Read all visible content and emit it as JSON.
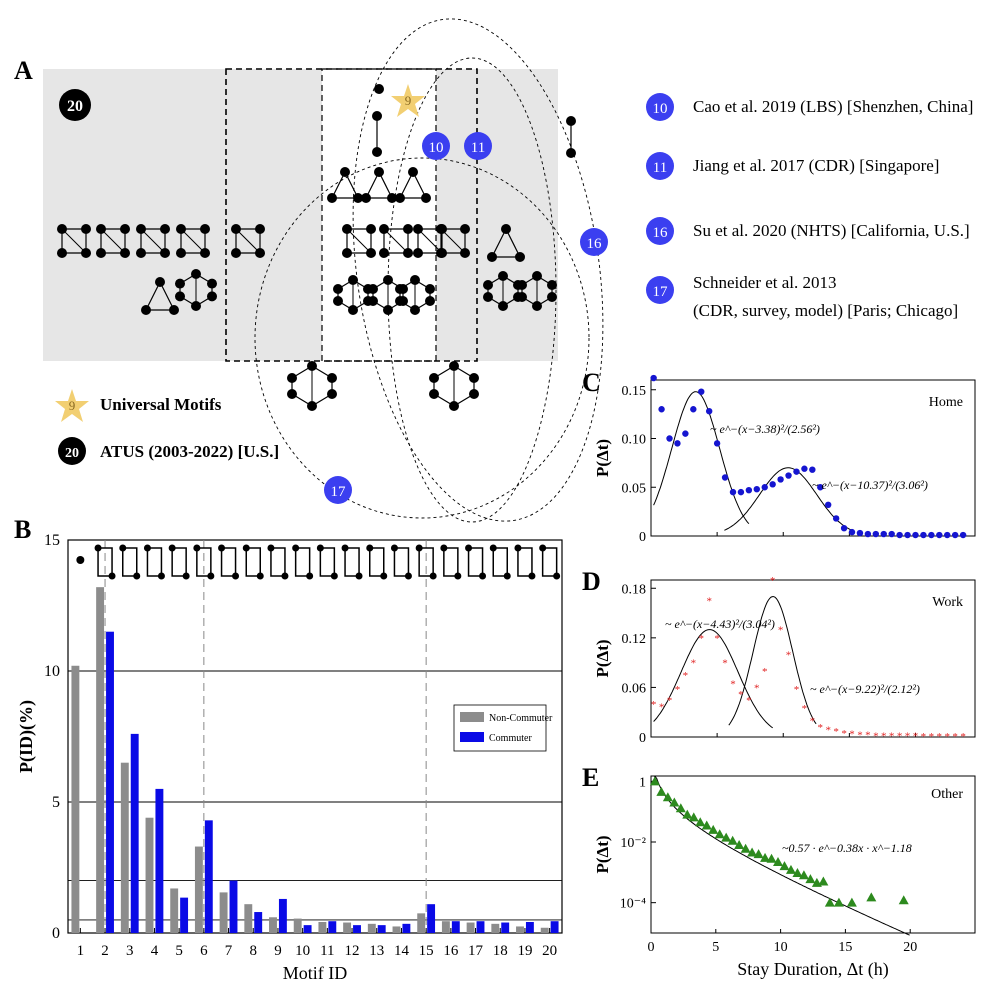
{
  "panel_a": {
    "label": "A",
    "badges": {
      "atus": "20",
      "universal": "9",
      "cao": "10",
      "jiang": "11",
      "su": "16",
      "schneider": "17"
    },
    "legend": {
      "universal_badge": "9",
      "universal_label": "Universal Motifs",
      "atus_badge": "20",
      "atus_label": "ATUS (2003-2022) [U.S.]"
    },
    "references": [
      {
        "badge": "10",
        "text": "Cao et al. 2019 (LBS) [Shenzhen, China]"
      },
      {
        "badge": "11",
        "text": "Jiang et al. 2017 (CDR) [Singapore]"
      },
      {
        "badge": "16",
        "text": "Su et al. 2020 (NHTS) [California, U.S.]"
      },
      {
        "badge": "17",
        "text_line1": "Schneider et al. 2013",
        "text_line2": "(CDR, survey, model) [Paris; Chicago]"
      }
    ]
  },
  "colors": {
    "atus": "#000000",
    "reference": "#3b3ff0",
    "universal": "#f2cf72",
    "non_commuter": "#8c8c8c",
    "commuter": "#0a0ae6",
    "home": "#1515d0",
    "work": "#e02020",
    "other": "#2d8a1e"
  },
  "chart_data": [
    {
      "panel": "B",
      "type": "bar",
      "title": "",
      "xlabel": "Motif ID",
      "ylabel": "P(ID)(%)",
      "ylim": [
        0,
        15
      ],
      "yticks": [
        "0",
        "5",
        "10",
        "15"
      ],
      "categories": [
        "1",
        "2",
        "3",
        "4",
        "5",
        "6",
        "7",
        "8",
        "9",
        "10",
        "11",
        "12",
        "13",
        "14",
        "15",
        "16",
        "17",
        "18",
        "19",
        "20"
      ],
      "series": [
        {
          "name": "Non-Commuter",
          "values": [
            10.2,
            13.2,
            6.5,
            4.4,
            1.7,
            3.3,
            1.55,
            1.1,
            0.6,
            0.55,
            0.42,
            0.4,
            0.35,
            0.25,
            0.75,
            0.45,
            0.4,
            0.35,
            0.25,
            0.2
          ]
        },
        {
          "name": "Commuter",
          "values": [
            0.0,
            11.5,
            7.6,
            5.5,
            1.35,
            4.3,
            2.0,
            0.8,
            1.3,
            0.3,
            0.45,
            0.3,
            0.3,
            0.35,
            1.1,
            0.45,
            0.45,
            0.4,
            0.42,
            0.45
          ]
        }
      ],
      "hlines": [
        0.5,
        2.0,
        5.0,
        10.0
      ]
    },
    {
      "panel": "C",
      "type": "scatter",
      "annotation": "Home",
      "ylabel": "P(Δt)",
      "ylim": [
        0,
        0.16
      ],
      "yticks": [
        "0",
        "0.05",
        "0.10",
        "0.15"
      ],
      "fits": [
        {
          "label": "~ e^−(x−3.38)²/(2.56²)",
          "mu": 3.38,
          "sigma": 2.56,
          "amp": 0.148
        },
        {
          "label": "~ e^−(x−10.37)²/(3.06²)",
          "mu": 10.37,
          "sigma": 3.06,
          "amp": 0.07
        }
      ],
      "x": [
        0.2,
        0.8,
        1.4,
        2.0,
        2.6,
        3.2,
        3.8,
        4.4,
        5.0,
        5.6,
        6.2,
        6.8,
        7.4,
        8.0,
        8.6,
        9.2,
        9.8,
        10.4,
        11.0,
        11.6,
        12.2,
        12.8,
        13.4,
        14.0,
        14.6,
        15.2,
        15.8,
        16.4,
        17.0,
        17.6,
        18.2,
        18.8,
        19.4,
        20.0,
        20.6,
        21.2,
        21.8,
        22.4,
        23.0,
        23.6
      ],
      "y": [
        0.162,
        0.13,
        0.1,
        0.095,
        0.105,
        0.13,
        0.148,
        0.128,
        0.095,
        0.06,
        0.045,
        0.045,
        0.047,
        0.048,
        0.05,
        0.053,
        0.058,
        0.062,
        0.066,
        0.069,
        0.068,
        0.05,
        0.032,
        0.018,
        0.008,
        0.004,
        0.003,
        0.002,
        0.002,
        0.002,
        0.002,
        0.001,
        0.001,
        0.001,
        0.001,
        0.001,
        0.001,
        0.001,
        0.001,
        0.001
      ]
    },
    {
      "panel": "D",
      "type": "scatter",
      "annotation": "Work",
      "ylabel": "P(Δt)",
      "ylim": [
        0,
        0.19
      ],
      "yticks": [
        "0",
        "0.06",
        "0.12",
        "0.18"
      ],
      "fits": [
        {
          "label": "~ e^−(x−4.43)²/(3.04²)",
          "mu": 4.43,
          "sigma": 3.04,
          "amp": 0.13
        },
        {
          "label": "~ e^−(x−9.22)²/(2.12²)",
          "mu": 9.22,
          "sigma": 2.12,
          "amp": 0.17
        }
      ],
      "x": [
        0.2,
        0.8,
        1.4,
        2.0,
        2.6,
        3.2,
        3.8,
        4.4,
        5.0,
        5.6,
        6.2,
        6.8,
        7.4,
        8.0,
        8.6,
        9.2,
        9.8,
        10.4,
        11.0,
        11.6,
        12.2,
        12.8,
        13.4,
        14.0,
        14.6,
        15.2,
        15.8,
        16.4,
        17.0,
        17.6,
        18.2,
        18.8,
        19.4,
        20.0,
        20.6,
        21.2,
        21.8,
        22.4,
        23.0,
        23.6
      ],
      "y": [
        0.04,
        0.037,
        0.045,
        0.058,
        0.075,
        0.09,
        0.12,
        0.165,
        0.12,
        0.09,
        0.065,
        0.052,
        0.045,
        0.06,
        0.08,
        0.19,
        0.13,
        0.1,
        0.058,
        0.035,
        0.02,
        0.012,
        0.009,
        0.007,
        0.005,
        0.004,
        0.003,
        0.003,
        0.002,
        0.002,
        0.002,
        0.002,
        0.002,
        0.002,
        0.001,
        0.001,
        0.001,
        0.001,
        0.001,
        0.001
      ]
    },
    {
      "panel": "E",
      "type": "scatter",
      "annotation": "Other",
      "xlabel": "Stay Duration, Δt (h)",
      "ylabel": "P(Δt)",
      "yscale": "log",
      "ylim": [
        1e-05,
        1.5
      ],
      "xlim": [
        0,
        25
      ],
      "xticks": [
        "0",
        "5",
        "10",
        "15",
        "20"
      ],
      "yticks": [
        "1",
        "10⁻²",
        "10⁻⁴"
      ],
      "fit": {
        "label": "~0.57 · e^−0.38x · x^−1.18",
        "a": 0.57,
        "b": 0.38,
        "c": 1.18
      },
      "x": [
        0.3,
        0.8,
        1.3,
        1.8,
        2.3,
        2.8,
        3.3,
        3.8,
        4.3,
        4.8,
        5.3,
        5.8,
        6.3,
        6.8,
        7.3,
        7.8,
        8.3,
        8.8,
        9.3,
        9.8,
        10.3,
        10.8,
        11.3,
        11.8,
        12.3,
        12.8,
        13.3,
        13.8,
        14.5,
        15.5,
        17.0,
        19.5
      ],
      "y": [
        1.0,
        0.45,
        0.3,
        0.2,
        0.13,
        0.08,
        0.065,
        0.045,
        0.035,
        0.025,
        0.018,
        0.014,
        0.011,
        0.008,
        0.006,
        0.0045,
        0.004,
        0.003,
        0.0028,
        0.0022,
        0.0016,
        0.0012,
        0.00095,
        0.0008,
        0.0006,
        0.00045,
        0.0005,
        0.0001,
        0.0001,
        0.0001,
        0.00015,
        0.00012
      ]
    }
  ],
  "motif_id_ticks_label": "Motif ID",
  "legend_b": {
    "non_commuter": "Non-Commuter",
    "commuter": "Commuter"
  }
}
